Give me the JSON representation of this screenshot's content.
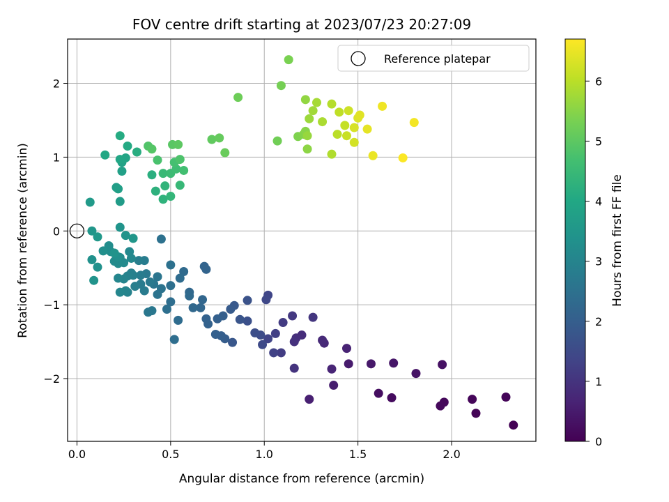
{
  "chart_data": {
    "type": "scatter",
    "title": "FOV centre drift starting at 2023/07/23 20:27:09",
    "xlabel": "Angular distance from reference (arcmin)",
    "ylabel": "Rotation from reference (arcmin)",
    "xlim": [
      -0.05,
      2.45
    ],
    "ylim": [
      -2.85,
      2.6
    ],
    "xticks": [
      0.0,
      0.5,
      1.0,
      1.5,
      2.0
    ],
    "xtick_labels": [
      "0.0",
      "0.5",
      "1.0",
      "1.5",
      "2.0"
    ],
    "yticks": [
      -2,
      -1,
      0,
      1,
      2
    ],
    "ytick_labels": [
      "−2",
      "−1",
      "0",
      "1",
      "2"
    ],
    "grid": true,
    "legend": {
      "position": "top-right",
      "entries": [
        "Reference platepar"
      ]
    },
    "reference_point": {
      "x": 0,
      "y": 0,
      "label": "Reference platepar"
    },
    "colorbar": {
      "label": "Hours from first FF file",
      "min": 0,
      "max": 6.7,
      "ticks": [
        0,
        1,
        2,
        3,
        4,
        5,
        6
      ],
      "tick_labels": [
        "0",
        "1",
        "2",
        "3",
        "4",
        "5",
        "6"
      ],
      "colormap": "viridis"
    },
    "points": [
      [
        2.33,
        -2.63,
        0.02
      ],
      [
        2.13,
        -2.47,
        0.05
      ],
      [
        2.29,
        -2.25,
        0.08
      ],
      [
        2.11,
        -2.28,
        0.1
      ],
      [
        1.96,
        -2.32,
        0.13
      ],
      [
        1.94,
        -2.37,
        0.15
      ],
      [
        1.68,
        -2.26,
        0.2
      ],
      [
        1.61,
        -2.2,
        0.25
      ],
      [
        1.95,
        -1.81,
        0.3
      ],
      [
        1.81,
        -1.93,
        0.35
      ],
      [
        1.69,
        -1.79,
        0.4
      ],
      [
        1.57,
        -1.8,
        0.45
      ],
      [
        1.45,
        -1.8,
        0.5
      ],
      [
        1.37,
        -2.09,
        0.55
      ],
      [
        1.24,
        -2.28,
        0.6
      ],
      [
        1.44,
        -1.59,
        0.65
      ],
      [
        1.36,
        -1.87,
        0.7
      ],
      [
        1.32,
        -1.52,
        0.75
      ],
      [
        1.31,
        -1.48,
        0.8
      ],
      [
        1.2,
        -1.41,
        0.85
      ],
      [
        1.17,
        -1.45,
        0.9
      ],
      [
        1.16,
        -1.5,
        0.95
      ],
      [
        1.16,
        -1.86,
        1.0
      ],
      [
        1.26,
        -1.17,
        1.05
      ],
      [
        1.15,
        -1.15,
        1.1
      ],
      [
        1.1,
        -1.24,
        1.15
      ],
      [
        1.09,
        -1.65,
        1.2
      ],
      [
        1.06,
        -1.39,
        1.25
      ],
      [
        1.05,
        -1.65,
        1.3
      ],
      [
        1.02,
        -1.46,
        1.35
      ],
      [
        1.02,
        -0.87,
        1.4
      ],
      [
        1.01,
        -0.93,
        1.45
      ],
      [
        0.99,
        -1.54,
        1.5
      ],
      [
        0.98,
        -1.41,
        1.55
      ],
      [
        0.95,
        -1.38,
        1.6
      ],
      [
        0.91,
        -1.22,
        1.65
      ],
      [
        0.91,
        -0.94,
        1.7
      ],
      [
        0.87,
        -1.2,
        1.75
      ],
      [
        0.83,
        -1.51,
        1.8
      ],
      [
        0.84,
        -1.01,
        1.85
      ],
      [
        0.82,
        -1.06,
        1.9
      ],
      [
        0.79,
        -1.46,
        1.95
      ],
      [
        0.77,
        -1.42,
        2.0
      ],
      [
        0.78,
        -1.15,
        2.0
      ],
      [
        0.75,
        -1.19,
        2.05
      ],
      [
        0.74,
        -1.4,
        2.05
      ],
      [
        0.7,
        -1.26,
        2.1
      ],
      [
        0.69,
        -1.19,
        2.1
      ],
      [
        0.68,
        -0.48,
        2.15
      ],
      [
        0.69,
        -0.52,
        2.15
      ],
      [
        0.67,
        -0.93,
        2.2
      ],
      [
        0.66,
        -1.04,
        2.2
      ],
      [
        0.62,
        -1.04,
        2.25
      ],
      [
        0.6,
        -0.83,
        2.25
      ],
      [
        0.6,
        -0.88,
        2.3
      ],
      [
        0.57,
        -0.55,
        2.3
      ],
      [
        0.55,
        -0.64,
        2.35
      ],
      [
        0.54,
        -1.21,
        2.35
      ],
      [
        0.52,
        -1.47,
        2.4
      ],
      [
        0.5,
        -0.96,
        2.4
      ],
      [
        0.48,
        -1.06,
        2.45
      ],
      [
        0.5,
        -0.74,
        2.45
      ],
      [
        0.5,
        -0.46,
        2.5
      ],
      [
        0.45,
        -0.11,
        2.5
      ],
      [
        0.45,
        -0.78,
        2.55
      ],
      [
        0.43,
        -0.86,
        2.55
      ],
      [
        0.43,
        -0.62,
        2.6
      ],
      [
        0.41,
        -0.72,
        2.6
      ],
      [
        0.4,
        -1.08,
        2.65
      ],
      [
        0.38,
        -1.1,
        2.65
      ],
      [
        0.39,
        -0.69,
        2.7
      ],
      [
        0.37,
        -0.58,
        2.7
      ],
      [
        0.36,
        -0.81,
        2.75
      ],
      [
        0.34,
        -0.72,
        2.75
      ],
      [
        0.36,
        -0.4,
        2.8
      ],
      [
        0.34,
        -0.6,
        2.8
      ],
      [
        0.33,
        -0.4,
        2.85
      ],
      [
        0.31,
        -0.75,
        2.85
      ],
      [
        0.3,
        -0.6,
        2.9
      ],
      [
        0.29,
        -0.57,
        2.9
      ],
      [
        0.27,
        -0.61,
        2.95
      ],
      [
        0.27,
        -0.83,
        2.95
      ],
      [
        0.26,
        -0.81,
        3.0
      ],
      [
        0.25,
        -0.65,
        3.0
      ],
      [
        0.23,
        -0.83,
        3.05
      ],
      [
        0.22,
        -0.64,
        3.05
      ],
      [
        0.29,
        -0.37,
        3.1
      ],
      [
        0.28,
        -0.28,
        3.1
      ],
      [
        0.25,
        -0.43,
        3.15
      ],
      [
        0.23,
        -0.36,
        3.15
      ],
      [
        0.22,
        -0.44,
        3.2
      ],
      [
        0.2,
        -0.41,
        3.2
      ],
      [
        0.18,
        -0.28,
        3.25
      ],
      [
        0.17,
        -0.2,
        3.25
      ],
      [
        0.22,
        -0.35,
        3.3
      ],
      [
        0.14,
        -0.27,
        3.3
      ],
      [
        0.11,
        -0.49,
        3.35
      ],
      [
        0.08,
        -0.39,
        3.35
      ],
      [
        0.09,
        -0.67,
        3.4
      ],
      [
        0.2,
        -0.3,
        3.4
      ],
      [
        0.23,
        0.05,
        3.45
      ],
      [
        0.26,
        -0.06,
        3.45
      ],
      [
        0.3,
        -0.1,
        3.5
      ],
      [
        0.08,
        0.0,
        3.5
      ],
      [
        0.11,
        -0.08,
        3.55
      ],
      [
        0.07,
        0.39,
        3.6
      ],
      [
        0.23,
        0.4,
        3.65
      ],
      [
        0.21,
        0.59,
        3.7
      ],
      [
        0.22,
        0.57,
        3.75
      ],
      [
        0.24,
        0.81,
        3.8
      ],
      [
        0.24,
        0.93,
        3.85
      ],
      [
        0.26,
        0.99,
        3.9
      ],
      [
        0.23,
        0.97,
        3.95
      ],
      [
        0.15,
        1.03,
        4.0
      ],
      [
        0.27,
        1.15,
        4.05
      ],
      [
        0.23,
        1.29,
        4.1
      ],
      [
        0.32,
        1.07,
        4.15
      ],
      [
        0.4,
        0.76,
        4.2
      ],
      [
        0.42,
        0.54,
        4.25
      ],
      [
        0.46,
        0.43,
        4.3
      ],
      [
        0.47,
        0.61,
        4.35
      ],
      [
        0.5,
        0.47,
        4.4
      ],
      [
        0.55,
        0.62,
        4.45
      ],
      [
        0.46,
        0.78,
        4.5
      ],
      [
        0.5,
        0.78,
        4.55
      ],
      [
        0.53,
        0.84,
        4.6
      ],
      [
        0.57,
        0.82,
        4.65
      ],
      [
        0.52,
        0.93,
        4.7
      ],
      [
        0.43,
        0.96,
        4.75
      ],
      [
        0.55,
        0.97,
        4.8
      ],
      [
        0.38,
        1.15,
        4.85
      ],
      [
        0.4,
        1.11,
        4.9
      ],
      [
        0.51,
        1.17,
        4.95
      ],
      [
        0.54,
        1.17,
        5.0
      ],
      [
        0.72,
        1.24,
        5.05
      ],
      [
        0.76,
        1.26,
        5.1
      ],
      [
        0.79,
        1.06,
        5.15
      ],
      [
        0.86,
        1.81,
        5.2
      ],
      [
        1.07,
        1.22,
        5.25
      ],
      [
        1.09,
        1.97,
        5.3
      ],
      [
        1.13,
        2.32,
        5.35
      ],
      [
        1.18,
        1.28,
        5.4
      ],
      [
        1.21,
        1.31,
        5.45
      ],
      [
        1.22,
        1.35,
        5.5
      ],
      [
        1.23,
        1.11,
        5.55
      ],
      [
        1.22,
        1.78,
        5.6
      ],
      [
        1.23,
        1.29,
        5.65
      ],
      [
        1.24,
        1.52,
        5.7
      ],
      [
        1.26,
        1.63,
        5.75
      ],
      [
        1.28,
        1.74,
        5.8
      ],
      [
        1.31,
        1.48,
        5.85
      ],
      [
        1.36,
        1.04,
        5.9
      ],
      [
        1.36,
        1.72,
        5.95
      ],
      [
        1.39,
        1.31,
        6.0
      ],
      [
        1.4,
        1.61,
        6.05
      ],
      [
        1.43,
        1.43,
        6.1
      ],
      [
        1.44,
        1.29,
        6.15
      ],
      [
        1.45,
        1.63,
        6.2
      ],
      [
        1.48,
        1.2,
        6.25
      ],
      [
        1.48,
        1.4,
        6.3
      ],
      [
        1.5,
        1.53,
        6.35
      ],
      [
        1.51,
        1.57,
        6.4
      ],
      [
        1.55,
        1.38,
        6.45
      ],
      [
        1.58,
        1.02,
        6.5
      ],
      [
        1.63,
        1.69,
        6.55
      ],
      [
        1.8,
        1.47,
        6.6
      ],
      [
        1.74,
        0.99,
        6.68
      ]
    ]
  }
}
